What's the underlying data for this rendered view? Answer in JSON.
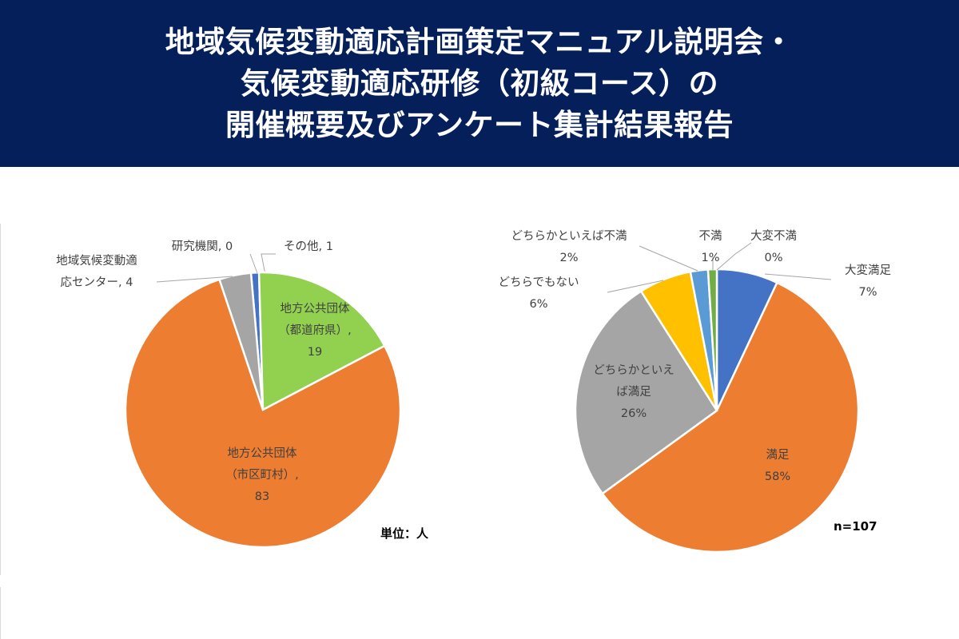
{
  "banner": {
    "line1": "地域気候変動適応計画策定マニュアル説明会・",
    "line2": "気候変動適応研修（初級コース）の",
    "line3": "開催概要及びアンケート集計結果報告"
  },
  "chart_data": [
    {
      "type": "pie",
      "unit_note": "単位：人",
      "slices": [
        {
          "name": "その他",
          "value": 1,
          "label_lines": [
            "その他, 1"
          ],
          "color": "#4472c4"
        },
        {
          "name": "地方公共団体（都道府県）",
          "value": 19,
          "label_lines": [
            "地方公共団体",
            "（都道府県）,",
            "19"
          ],
          "color": "#92d050"
        },
        {
          "name": "地方公共団体（市区町村）",
          "value": 83,
          "label_lines": [
            "地方公共団体",
            "（市区町村）,",
            "83"
          ],
          "color": "#ed7d31"
        },
        {
          "name": "地域気候変動適応センター",
          "value": 4,
          "label_lines": [
            "地域気候変動適",
            "応センター, 4"
          ],
          "color": "#a5a5a5"
        },
        {
          "name": "研究機関",
          "value": 0,
          "label_lines": [
            "研究機関, 0"
          ],
          "color": "#ffc000"
        }
      ]
    },
    {
      "type": "pie",
      "n_note": "n=107",
      "slices": [
        {
          "name": "大変満足",
          "value": 7,
          "label_lines": [
            "大変満足",
            "7%"
          ],
          "color": "#4472c4"
        },
        {
          "name": "満足",
          "value": 58,
          "label_lines": [
            "満足",
            "58%"
          ],
          "color": "#ed7d31"
        },
        {
          "name": "どちらかといえば満足",
          "value": 26,
          "label_lines": [
            "どちらかといえ",
            "ば満足",
            "26%"
          ],
          "color": "#a5a5a5"
        },
        {
          "name": "どちらでもない",
          "value": 6,
          "label_lines": [
            "どちらでもない",
            "6%"
          ],
          "color": "#ffc000"
        },
        {
          "name": "どちらかといえば不満",
          "value": 2,
          "label_lines": [
            "どちらかといえば不満",
            "2%"
          ],
          "color": "#5b9bd5"
        },
        {
          "name": "不満",
          "value": 1,
          "label_lines": [
            "不満",
            "1%"
          ],
          "color": "#70ad47"
        },
        {
          "name": "大変不満",
          "value": 0,
          "label_lines": [
            "大変不満",
            "0%"
          ],
          "color": "#264478"
        }
      ]
    }
  ]
}
